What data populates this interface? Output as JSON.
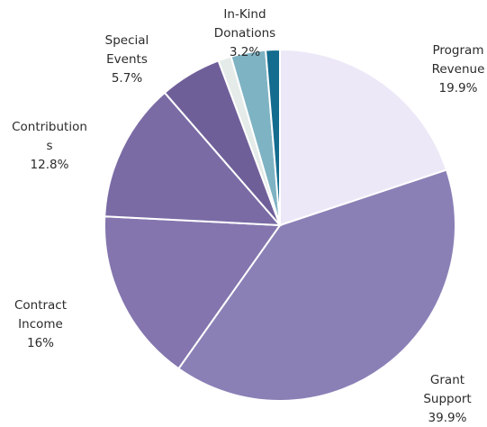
{
  "chart_data": {
    "type": "pie",
    "title": "",
    "slices": [
      {
        "label": [
          "Program",
          "Revenue"
        ],
        "value_label": "19.9%",
        "value": 19.9,
        "color": "#ede8f7"
      },
      {
        "label": [
          "Grant",
          "Support"
        ],
        "value_label": "39.9%",
        "value": 39.9,
        "color": "#8b80b6"
      },
      {
        "label": [
          "Contract",
          "Income"
        ],
        "value_label": "16%",
        "value": 16.0,
        "color": "#8475ae"
      },
      {
        "label": [
          "Contribution",
          "s"
        ],
        "value_label": "12.8%",
        "value": 12.8,
        "color": "#7a6ba5"
      },
      {
        "label": [
          "Special",
          "Events"
        ],
        "value_label": "5.7%",
        "value": 5.7,
        "color": "#6f5f99"
      },
      {
        "label": [],
        "value_label": "",
        "value": 1.2,
        "color": "#e4ebe9"
      },
      {
        "label": [
          "In-Kind",
          "Donations"
        ],
        "value_label": "3.2%",
        "value": 3.2,
        "color": "#7eb3c3"
      },
      {
        "label": [],
        "value_label": "",
        "value": 1.3,
        "color": "#146c8e"
      }
    ],
    "legend": "none"
  }
}
